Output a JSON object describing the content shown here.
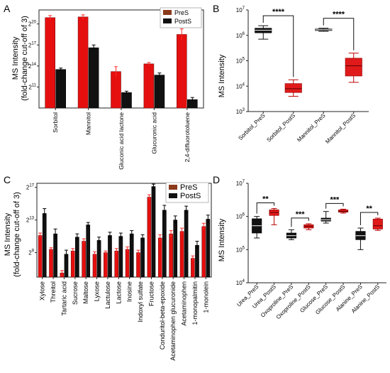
{
  "panel_letters": [
    "A",
    "B",
    "C",
    "D"
  ],
  "colors": {
    "pre_fill": "#e60f0f",
    "pre_dark": "#7a1010",
    "post": "#111111",
    "ticks": "#ff2a2a",
    "brown": "#8b3a1a",
    "box_post": "#e01a1a",
    "highlight": "#f6c8f0"
  },
  "chart_data": [
    {
      "panel": "A",
      "type": "bar",
      "ylabel": "MS Intensity",
      "ylabel2": "(fold-change cut-off of 3)",
      "yscale": "log2",
      "ylim_log2": [
        8,
        22
      ],
      "yticks": [
        {
          "label": "2",
          "exp": "20",
          "value_log2": 20
        },
        {
          "label": "2",
          "exp": "17",
          "value_log2": 17
        },
        {
          "label": "2",
          "exp": "14",
          "value_log2": 14
        },
        {
          "label": "2",
          "exp": "11",
          "value_log2": 11
        }
      ],
      "categories": [
        "Sorbitol",
        "Mannitol",
        "Gluconic acid lactone",
        "Glucuronic acid",
        "2,4-difluorotoluene"
      ],
      "series": [
        {
          "name": "PreS",
          "values_log2": [
            20.9,
            21.0,
            13.2,
            14.3,
            18.5
          ],
          "err_log2": [
            0.3,
            0.3,
            0.7,
            0.2,
            0.8
          ]
        },
        {
          "name": "PostS",
          "values_log2": [
            13.5,
            16.6,
            10.2,
            12.7,
            9.2
          ],
          "err_log2": [
            0.2,
            0.4,
            0.2,
            0.3,
            0.3
          ]
        }
      ]
    },
    {
      "panel": "B",
      "type": "box",
      "ylabel": "MS Intensity",
      "yscale": "log10",
      "ylim_log10": [
        3,
        7
      ],
      "yticks": [
        {
          "label": "10",
          "exp": "7",
          "value_log10": 7
        },
        {
          "label": "10",
          "exp": "6",
          "value_log10": 6
        },
        {
          "label": "10",
          "exp": "5",
          "value_log10": 5
        },
        {
          "label": "10",
          "exp": "4",
          "value_log10": 4
        },
        {
          "label": "10",
          "exp": "3",
          "value_log10": 3
        }
      ],
      "categories": [
        "Sorbitol_PreS",
        "Sorbitol_PostS",
        "Mannitol_PreS",
        "Mannitol_PostS"
      ],
      "boxes_log10": [
        {
          "min": 5.85,
          "q1": 6.1,
          "median": 6.2,
          "q3": 6.28,
          "max": 6.38,
          "group": "pre"
        },
        {
          "min": 3.6,
          "q1": 3.75,
          "median": 3.9,
          "q3": 4.1,
          "max": 4.25,
          "group": "post"
        },
        {
          "min": 6.16,
          "q1": 6.19,
          "median": 6.22,
          "q3": 6.25,
          "max": 6.28,
          "group": "pre"
        },
        {
          "min": 4.15,
          "q1": 4.4,
          "median": 4.8,
          "q3": 5.1,
          "max": 5.3,
          "group": "post"
        }
      ],
      "significance": [
        {
          "from": 0,
          "to": 1,
          "label": "****"
        },
        {
          "from": 2,
          "to": 3,
          "label": "****"
        }
      ]
    },
    {
      "panel": "C",
      "type": "bar",
      "ylabel": "MS Intensity",
      "ylabel2": "(fold-change cut-off of 3)",
      "yscale": "log2",
      "ylim_log2": [
        6,
        17.5
      ],
      "yticks": [
        {
          "label": "2",
          "exp": "17",
          "value_log2": 17
        },
        {
          "label": "2",
          "exp": "13",
          "value_log2": 13
        },
        {
          "label": "2",
          "exp": "9",
          "value_log2": 9
        }
      ],
      "categories": [
        "Xylose",
        "Threitol",
        "Tartaric acid",
        "Sucrose",
        "Maltose",
        "Lyxose",
        "Lactulose",
        "Lactose",
        "Inosine",
        "Indoxyl sulfate",
        "Fructose",
        "Conduritol-beta-epoxide",
        "Acetaminophen glucuronide",
        "Acetaminophen",
        "1-monopalmitin",
        "1-monolein"
      ],
      "series": [
        {
          "name": "PreS",
          "values_log2": [
            11.1,
            9.4,
            6.5,
            9.2,
            10.4,
            8.8,
            9.0,
            9.2,
            9.4,
            9.0,
            15.8,
            10.8,
            11.3,
            11.6,
            8.3,
            12.2
          ],
          "err_log2": [
            0.3,
            0.2,
            0.3,
            0.3,
            0.3,
            0.3,
            0.2,
            0.3,
            0.3,
            0.3,
            0.3,
            0.4,
            0.4,
            0.4,
            0.3,
            0.4
          ]
        },
        {
          "name": "PostS",
          "values_log2": [
            13.8,
            11.3,
            8.8,
            10.9,
            12.4,
            10.5,
            11.1,
            11.0,
            11.3,
            10.8,
            17.1,
            14.2,
            13.0,
            14.2,
            9.9,
            13.1
          ],
          "err_log2": [
            0.6,
            0.6,
            0.5,
            0.4,
            0.3,
            0.4,
            0.4,
            0.4,
            0.4,
            0.4,
            0.3,
            0.6,
            0.5,
            0.5,
            0.5,
            0.5
          ]
        }
      ]
    },
    {
      "panel": "D",
      "type": "box",
      "ylabel": "MS Intensity",
      "yscale": "log10",
      "ylim_log10": [
        4,
        7
      ],
      "yticks": [
        {
          "label": "10",
          "exp": "7",
          "value_log10": 7
        },
        {
          "label": "10",
          "exp": "6",
          "value_log10": 6
        },
        {
          "label": "10",
          "exp": "5",
          "value_log10": 5
        },
        {
          "label": "10",
          "exp": "4",
          "value_log10": 4
        }
      ],
      "categories": [
        "Urea_PreS",
        "Urea_PostS",
        "Oxoproline_PreS",
        "Oxoproline_PostS",
        "Glucose_PreS",
        "Glucose_PostS",
        "Alanine_PreS",
        "Alanine_PostS"
      ],
      "boxes_log10": [
        {
          "min": 5.35,
          "q1": 5.5,
          "median": 5.72,
          "q3": 5.93,
          "max": 6.0,
          "group": "pre"
        },
        {
          "min": 5.75,
          "q1": 6.03,
          "median": 6.12,
          "q3": 6.2,
          "max": 6.24,
          "group": "post"
        },
        {
          "min": 5.3,
          "q1": 5.35,
          "median": 5.42,
          "q3": 5.5,
          "max": 5.6,
          "group": "pre"
        },
        {
          "min": 5.6,
          "q1": 5.65,
          "median": 5.7,
          "q3": 5.75,
          "max": 5.78,
          "group": "post"
        },
        {
          "min": 5.8,
          "q1": 5.86,
          "median": 5.9,
          "q3": 5.95,
          "max": 6.15,
          "group": "pre"
        },
        {
          "min": 6.1,
          "q1": 6.13,
          "median": 6.15,
          "q3": 6.2,
          "max": 6.22,
          "group": "post"
        },
        {
          "min": 5.0,
          "q1": 5.3,
          "median": 5.42,
          "q3": 5.55,
          "max": 5.65,
          "group": "pre"
        },
        {
          "min": 5.58,
          "q1": 5.62,
          "median": 5.72,
          "q3": 5.92,
          "max": 5.95,
          "group": "post"
        }
      ],
      "significance": [
        {
          "from": 0,
          "to": 1,
          "label": "**"
        },
        {
          "from": 2,
          "to": 3,
          "label": "***"
        },
        {
          "from": 4,
          "to": 5,
          "label": "***"
        },
        {
          "from": 6,
          "to": 7,
          "label": "**"
        }
      ]
    }
  ]
}
